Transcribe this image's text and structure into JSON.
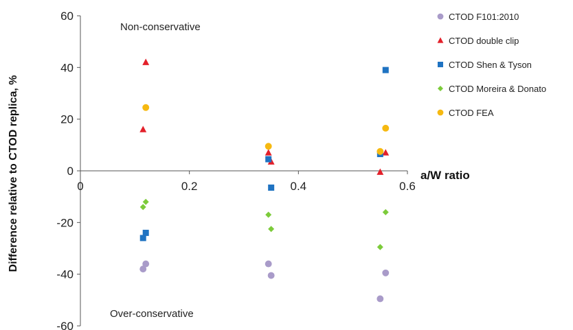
{
  "chart_data": {
    "type": "scatter",
    "title": "",
    "xlabel": "a/W ratio",
    "ylabel": "Difference  relative to CTOD replica, %",
    "xlim": [
      0,
      0.6
    ],
    "ylim": [
      -60,
      60
    ],
    "xticks": [
      0,
      0.2,
      0.4,
      0.6
    ],
    "yticks": [
      -60,
      -40,
      -20,
      0,
      20,
      40,
      60
    ],
    "xtick_labels": [
      "0",
      "0.2",
      "0.4",
      "0.6"
    ],
    "ytick_labels": [
      "-60",
      "-40",
      "-20",
      "0",
      "20",
      "40",
      "60"
    ],
    "grid": false,
    "legend_position": "right",
    "annotations": [
      "Non-conservative",
      "Over-conservative"
    ],
    "series": [
      {
        "name": "CTOD F101:2010",
        "marker": "circle",
        "color": "#a99bc9",
        "x": [
          0.115,
          0.12,
          0.345,
          0.35,
          0.55,
          0.56
        ],
        "y": [
          -38,
          -36,
          -36,
          -40.5,
          -49.5,
          -39.5
        ]
      },
      {
        "name": "CTOD double clip",
        "marker": "triangle",
        "color": "#e3202a",
        "x": [
          0.115,
          0.12,
          0.345,
          0.35,
          0.55,
          0.56
        ],
        "y": [
          16,
          42,
          7,
          3.5,
          -0.5,
          7
        ]
      },
      {
        "name": "CTOD Shen & Tyson",
        "marker": "square",
        "color": "#1f73c2",
        "x": [
          0.115,
          0.12,
          0.345,
          0.35,
          0.55,
          0.56
        ],
        "y": [
          -26,
          -24,
          4.5,
          -6.5,
          6.5,
          39
        ]
      },
      {
        "name": "CTOD Moreira & Donato",
        "marker": "diamond",
        "color": "#7ccb3a",
        "x": [
          0.115,
          0.12,
          0.345,
          0.35,
          0.55,
          0.56
        ],
        "y": [
          -14,
          -12,
          -17,
          -22.5,
          -29.5,
          -16
        ]
      },
      {
        "name": "CTOD FEA",
        "marker": "circle",
        "color": "#f6b911",
        "x": [
          0.12,
          0.345,
          0.55,
          0.56
        ],
        "y": [
          24.5,
          9.5,
          7.5,
          16.5
        ]
      }
    ]
  }
}
